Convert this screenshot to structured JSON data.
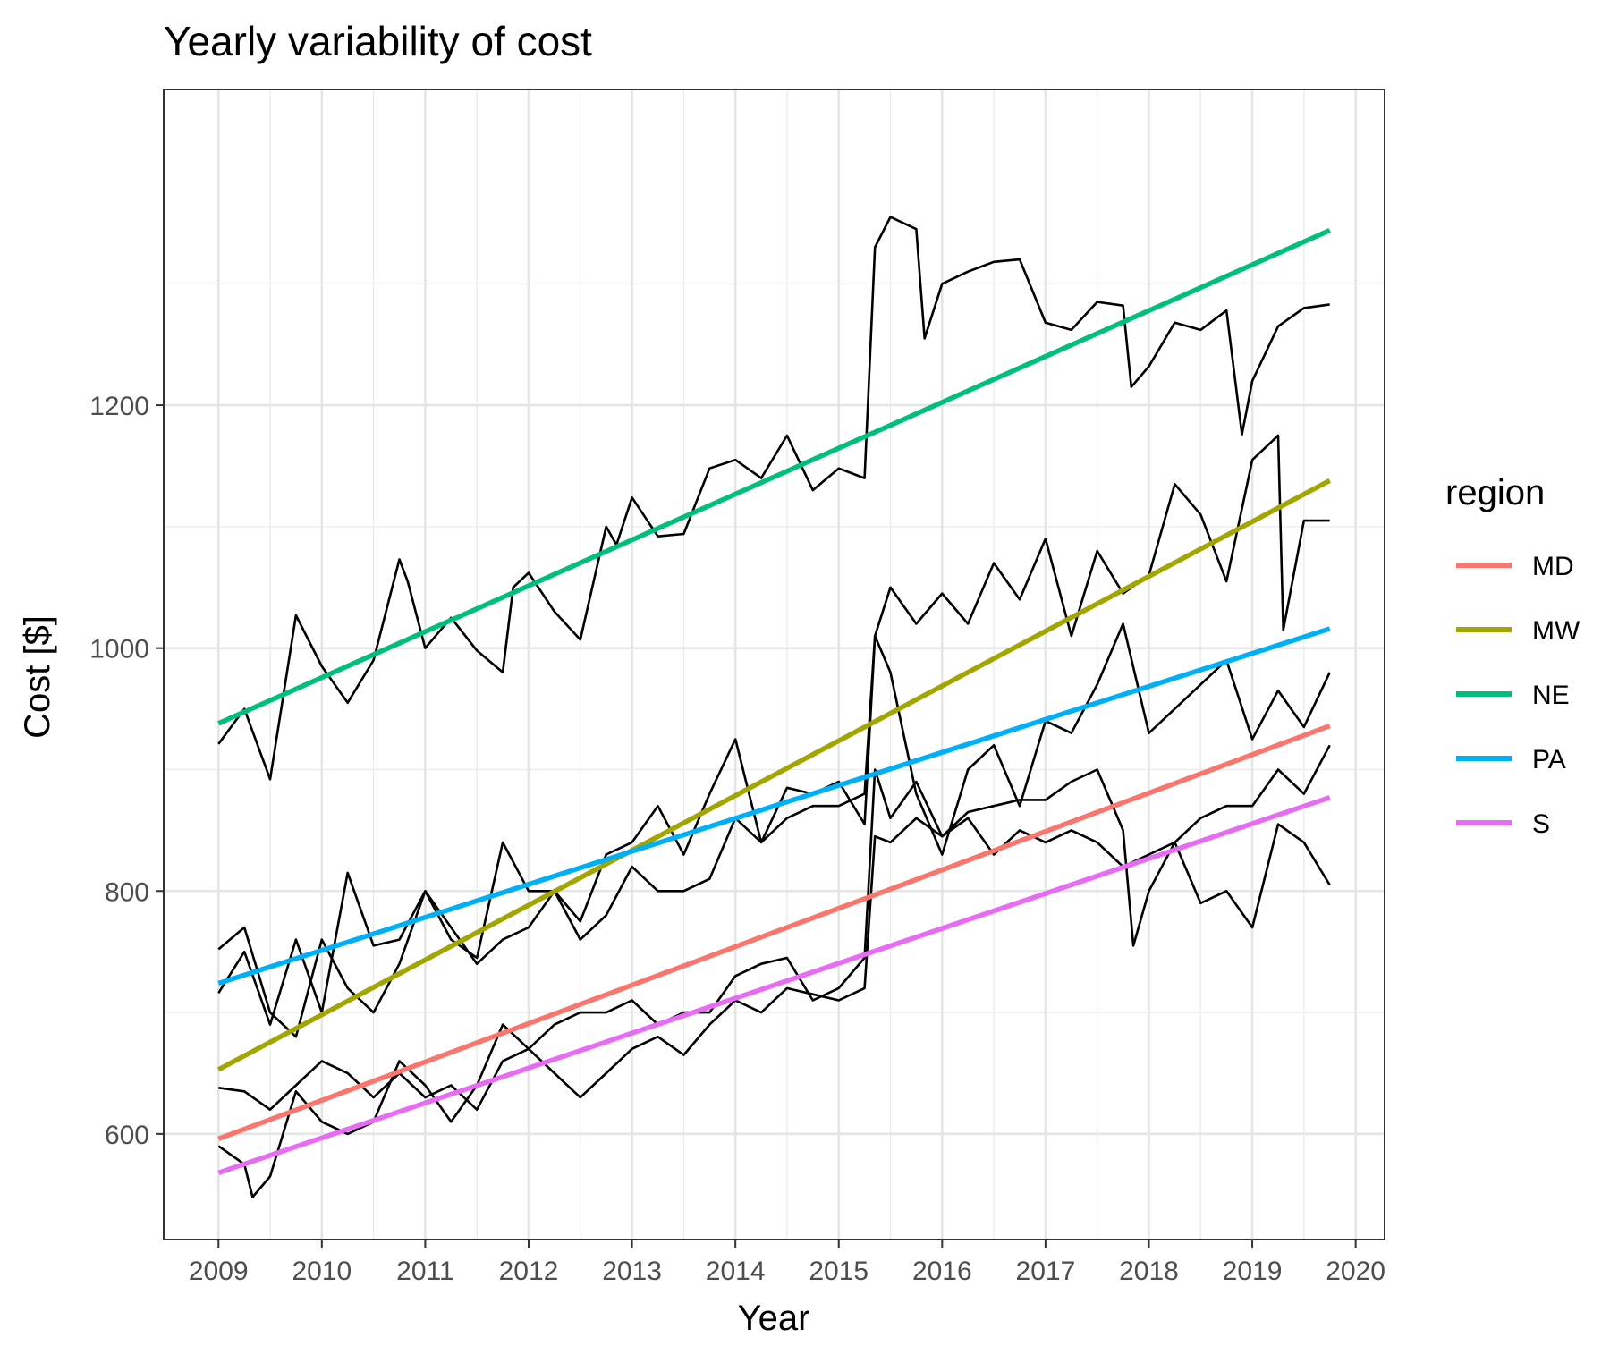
{
  "chart_data": {
    "type": "line",
    "title": "Yearly variability of cost",
    "xlabel": "Year",
    "ylabel": "Cost [$]",
    "xlim": [
      2008.47,
      2020.28
    ],
    "ylim": [
      513,
      1460
    ],
    "x_ticks": [
      2009,
      2010,
      2011,
      2012,
      2013,
      2014,
      2015,
      2016,
      2017,
      2018,
      2019,
      2020
    ],
    "y_ticks": [
      600,
      800,
      1000,
      1200
    ],
    "grid": true,
    "legend": {
      "title": "region",
      "position": "right"
    },
    "trend_lines": [
      {
        "name": "MD",
        "color": "#F8766D",
        "x": [
          2009.0,
          2019.75
        ],
        "y": [
          596,
          936
        ]
      },
      {
        "name": "MW",
        "color": "#A3A500",
        "x": [
          2009.0,
          2019.75
        ],
        "y": [
          653,
          1138
        ]
      },
      {
        "name": "NE",
        "color": "#00BF7D",
        "x": [
          2009.0,
          2019.75
        ],
        "y": [
          938,
          1344
        ]
      },
      {
        "name": "PA",
        "color": "#00B0F6",
        "x": [
          2009.0,
          2019.75
        ],
        "y": [
          724,
          1016
        ]
      },
      {
        "name": "S",
        "color": "#E76BF3",
        "x": [
          2009.0,
          2019.75
        ],
        "y": [
          568,
          877
        ]
      }
    ],
    "observed_series": [
      {
        "color": "#000000",
        "x": [
          2009.0,
          2009.25,
          2009.5,
          2009.75,
          2010.0,
          2010.25,
          2010.5,
          2010.75,
          2010.83,
          2011.0,
          2011.25,
          2011.5,
          2011.75,
          2011.85,
          2012.0,
          2012.25,
          2012.5,
          2012.75,
          2012.85,
          2013.0,
          2013.25,
          2013.5,
          2013.75,
          2014.0,
          2014.25,
          2014.5,
          2014.75,
          2015.0,
          2015.25,
          2015.35,
          2015.5,
          2015.75,
          2015.83,
          2016.0,
          2016.25,
          2016.5,
          2016.75,
          2017.0,
          2017.25,
          2017.5,
          2017.75,
          2017.83,
          2018.0,
          2018.25,
          2018.5,
          2018.75,
          2018.9,
          2019.0,
          2019.25,
          2019.5,
          2019.75
        ],
        "y": [
          921,
          950,
          892,
          1027,
          985,
          955,
          990,
          1073,
          1055,
          1000,
          1025,
          998,
          980,
          1050,
          1062,
          1030,
          1007,
          1100,
          1085,
          1124,
          1092,
          1094,
          1148,
          1155,
          1140,
          1175,
          1130,
          1148,
          1140,
          1330,
          1355,
          1345,
          1255,
          1300,
          1310,
          1318,
          1320,
          1268,
          1262,
          1285,
          1282,
          1215,
          1232,
          1268,
          1262,
          1278,
          1176,
          1220,
          1265,
          1280,
          1283
        ]
      },
      {
        "color": "#000000",
        "x": [
          2009.0,
          2009.25,
          2009.5,
          2009.75,
          2010.0,
          2010.25,
          2010.5,
          2010.75,
          2011.0,
          2011.25,
          2011.5,
          2011.75,
          2012.0,
          2012.25,
          2012.5,
          2012.75,
          2013.0,
          2013.25,
          2013.5,
          2013.75,
          2014.0,
          2014.25,
          2014.5,
          2014.75,
          2015.0,
          2015.25,
          2015.35,
          2015.5,
          2015.75,
          2016.0,
          2016.25,
          2016.5,
          2016.75,
          2017.0,
          2017.25,
          2017.5,
          2017.75,
          2018.0,
          2018.25,
          2018.5,
          2018.75,
          2019.0,
          2019.25,
          2019.3,
          2019.5,
          2019.75
        ],
        "y": [
          716,
          750,
          690,
          760,
          700,
          815,
          755,
          760,
          800,
          760,
          745,
          840,
          800,
          800,
          775,
          830,
          840,
          870,
          830,
          880,
          925,
          840,
          885,
          880,
          890,
          855,
          1010,
          1050,
          1020,
          1045,
          1020,
          1070,
          1040,
          1090,
          1010,
          1080,
          1045,
          1060,
          1135,
          1110,
          1055,
          1155,
          1175,
          1015,
          1105,
          1105
        ]
      },
      {
        "color": "#000000",
        "x": [
          2009.0,
          2009.25,
          2009.5,
          2009.75,
          2010.0,
          2010.25,
          2010.5,
          2010.75,
          2011.0,
          2011.25,
          2011.5,
          2011.75,
          2012.0,
          2012.25,
          2012.5,
          2012.75,
          2013.0,
          2013.25,
          2013.5,
          2013.75,
          2014.0,
          2014.25,
          2014.5,
          2014.75,
          2015.0,
          2015.25,
          2015.35,
          2015.5,
          2015.75,
          2016.0,
          2016.25,
          2016.5,
          2016.75,
          2017.0,
          2017.25,
          2017.5,
          2017.75,
          2018.0,
          2018.25,
          2018.5,
          2018.75,
          2019.0,
          2019.25,
          2019.5,
          2019.75
        ],
        "y": [
          752,
          770,
          700,
          680,
          760,
          720,
          700,
          740,
          800,
          770,
          740,
          760,
          770,
          800,
          760,
          780,
          820,
          800,
          800,
          810,
          860,
          840,
          860,
          870,
          870,
          880,
          1010,
          980,
          880,
          830,
          900,
          920,
          870,
          940,
          930,
          970,
          1020,
          930,
          950,
          970,
          990,
          925,
          965,
          935,
          980
        ]
      },
      {
        "color": "#000000",
        "x": [
          2009.0,
          2009.25,
          2009.5,
          2009.75,
          2010.0,
          2010.25,
          2010.5,
          2010.75,
          2011.0,
          2011.25,
          2011.5,
          2011.75,
          2012.0,
          2012.25,
          2012.5,
          2012.75,
          2013.0,
          2013.25,
          2013.5,
          2013.75,
          2014.0,
          2014.25,
          2014.5,
          2014.75,
          2015.0,
          2015.25,
          2015.35,
          2015.5,
          2015.75,
          2016.0,
          2016.25,
          2016.5,
          2016.75,
          2017.0,
          2017.25,
          2017.5,
          2017.75,
          2018.0,
          2018.25,
          2018.5,
          2018.75,
          2019.0,
          2019.25,
          2019.5,
          2019.75
        ],
        "y": [
          638,
          635,
          620,
          640,
          660,
          650,
          630,
          650,
          630,
          640,
          620,
          660,
          670,
          650,
          630,
          650,
          670,
          680,
          665,
          690,
          710,
          700,
          720,
          715,
          710,
          720,
          845,
          840,
          860,
          845,
          860,
          830,
          850,
          840,
          850,
          840,
          820,
          830,
          840,
          790,
          800,
          770,
          855,
          840,
          805
        ]
      },
      {
        "color": "#000000",
        "x": [
          2009.0,
          2009.25,
          2009.33,
          2009.5,
          2009.75,
          2010.0,
          2010.25,
          2010.5,
          2010.75,
          2011.0,
          2011.25,
          2011.5,
          2011.75,
          2012.0,
          2012.25,
          2012.5,
          2012.75,
          2013.0,
          2013.25,
          2013.5,
          2013.75,
          2014.0,
          2014.25,
          2014.5,
          2014.75,
          2015.0,
          2015.25,
          2015.35,
          2015.5,
          2015.75,
          2016.0,
          2016.25,
          2016.5,
          2016.75,
          2017.0,
          2017.25,
          2017.5,
          2017.75,
          2017.85,
          2018.0,
          2018.25,
          2018.5,
          2018.75,
          2019.0,
          2019.25,
          2019.5,
          2019.75
        ],
        "y": [
          590,
          575,
          548,
          565,
          635,
          610,
          600,
          610,
          660,
          640,
          610,
          640,
          690,
          670,
          690,
          700,
          700,
          710,
          690,
          700,
          700,
          730,
          740,
          745,
          710,
          720,
          745,
          900,
          860,
          890,
          845,
          865,
          870,
          875,
          875,
          890,
          900,
          850,
          755,
          800,
          840,
          860,
          870,
          870,
          900,
          880,
          920
        ]
      }
    ]
  }
}
